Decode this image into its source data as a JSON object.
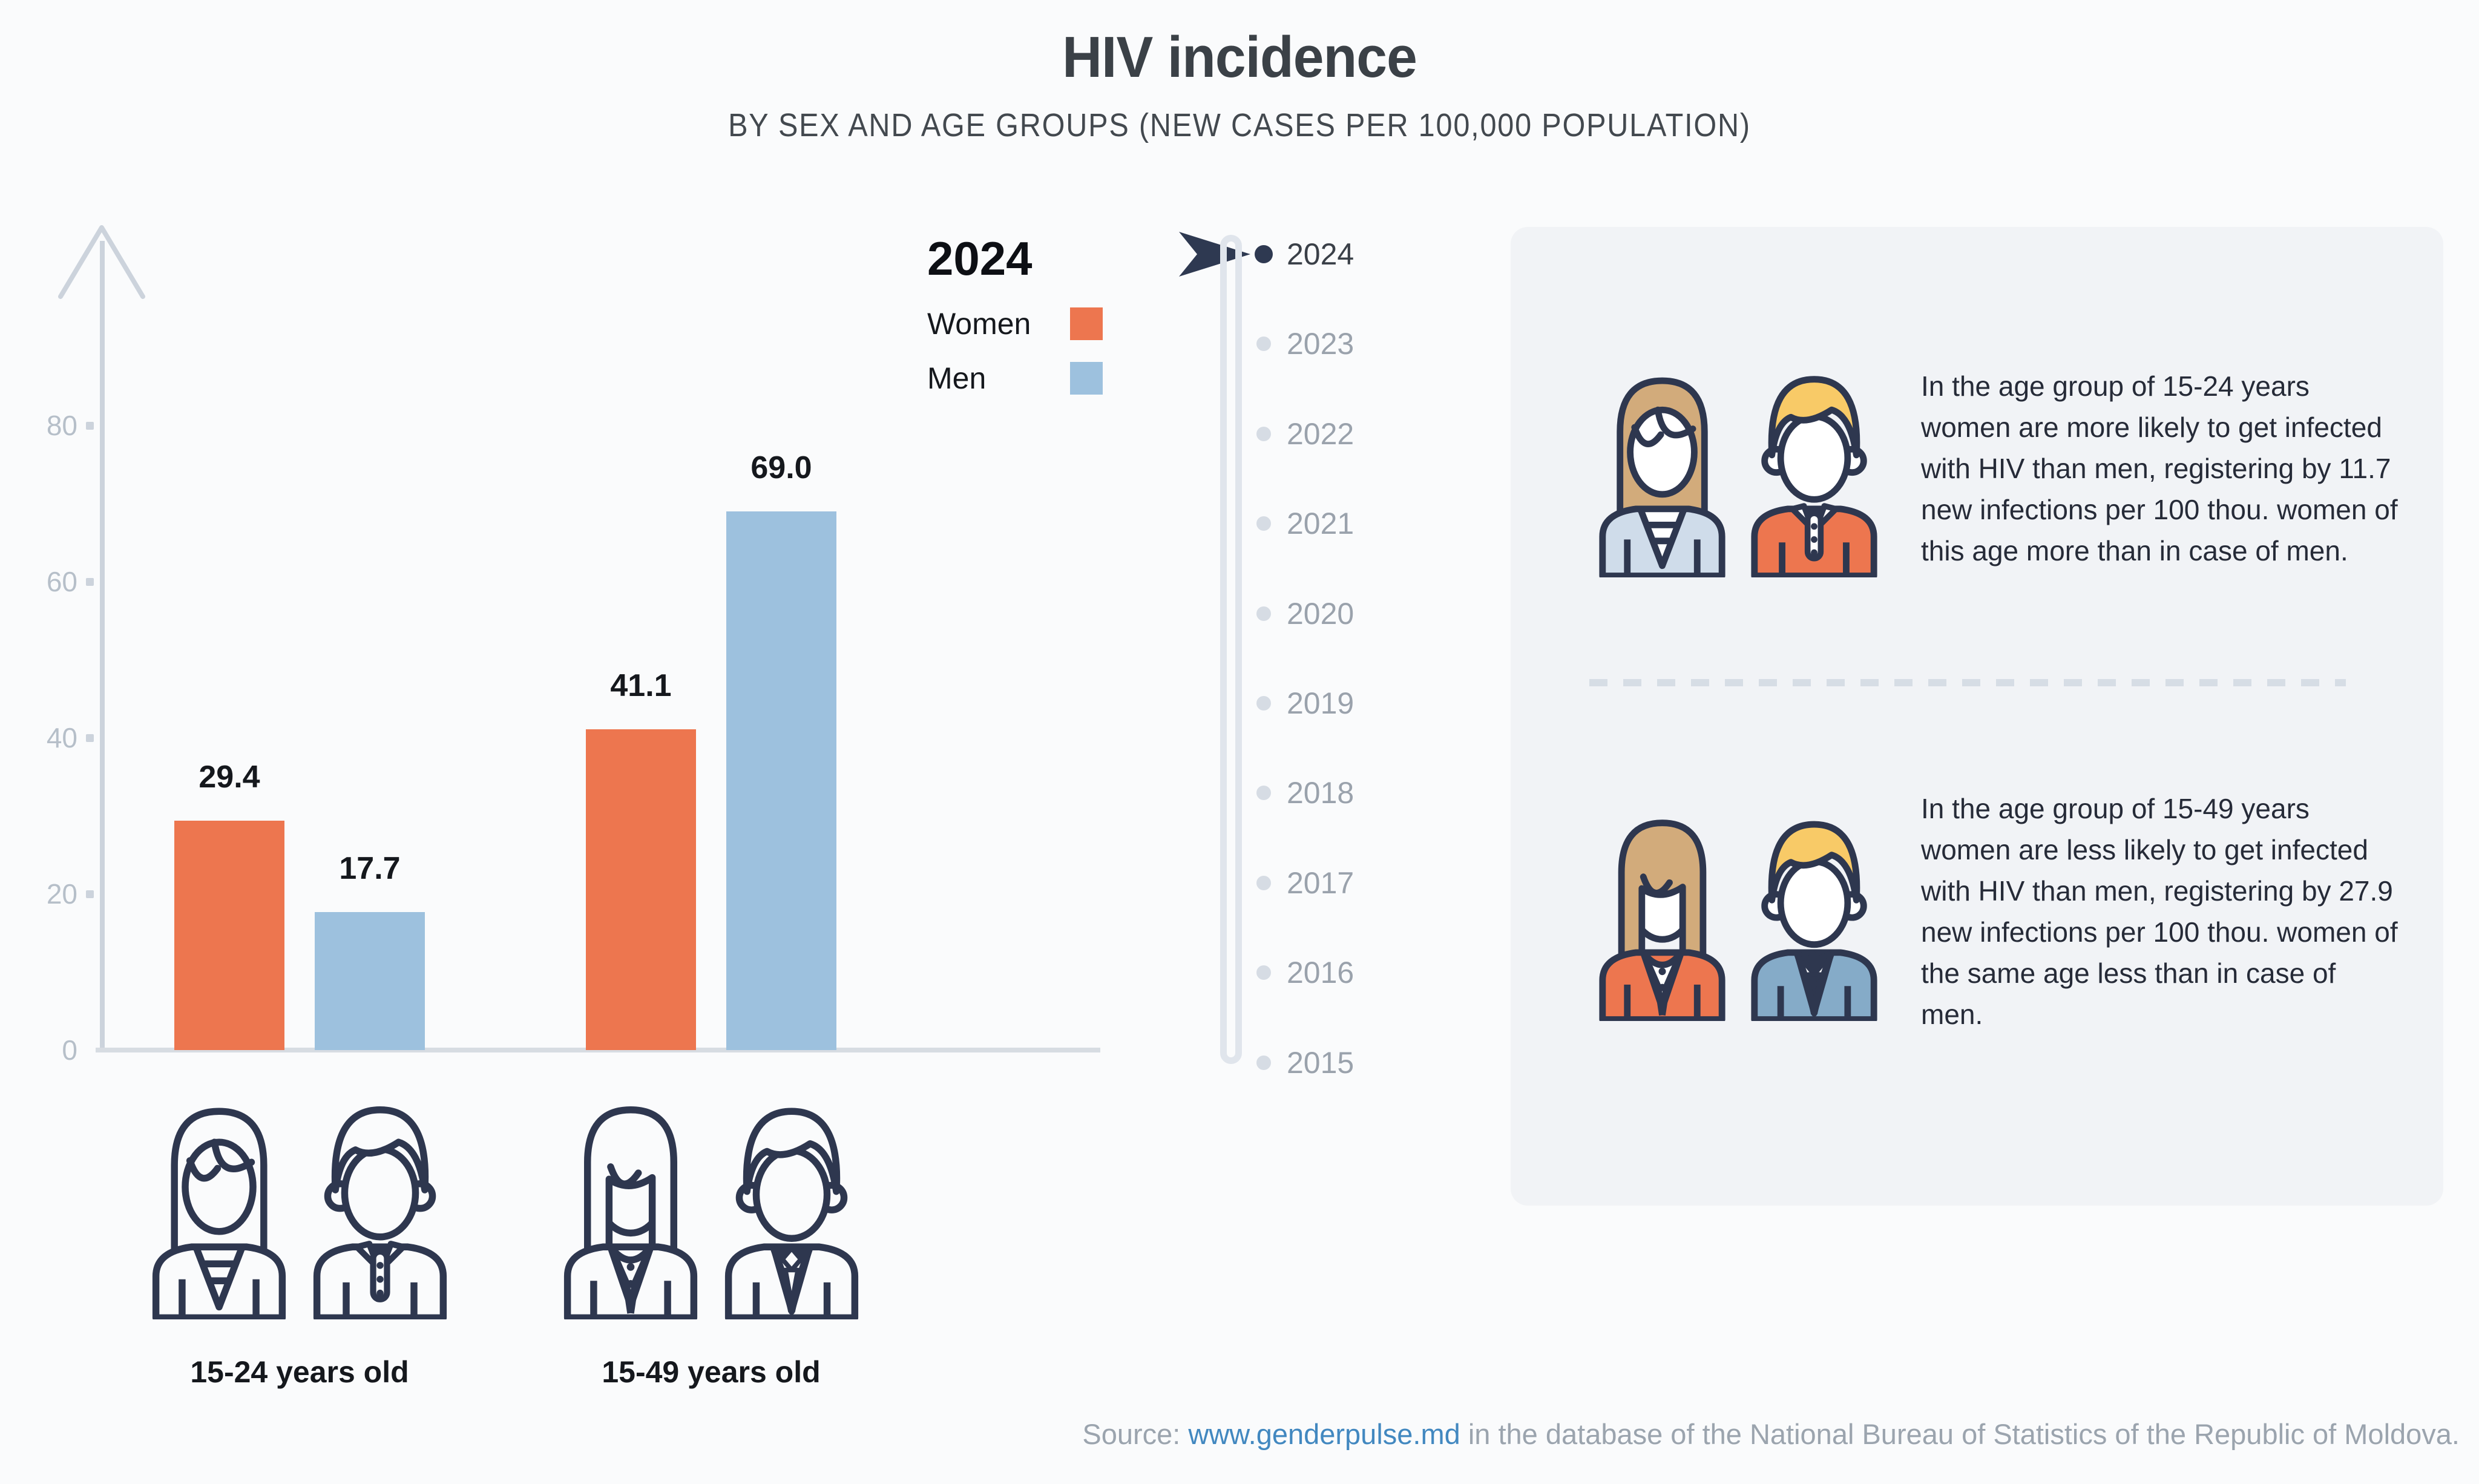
{
  "title": "HIV incidence",
  "subtitle": "BY SEX AND AGE GROUPS (NEW CASES PER 100,000 POPULATION)",
  "legend": {
    "year": "2024"
  },
  "chart_data": {
    "type": "bar",
    "title": "HIV incidence",
    "subtitle": "BY SEX AND AGE GROUPS (NEW CASES PER 100,000 POPULATION)",
    "year": "2024",
    "categories": [
      "15-24 years old",
      "15-49 years old"
    ],
    "series": [
      {
        "name": "Women",
        "color": "#ED764F",
        "values": [
          29.4,
          41.1
        ]
      },
      {
        "name": "Men",
        "color": "#9DC1DE",
        "values": [
          17.7,
          69.0
        ]
      }
    ],
    "ylabel": "new cases per 100,000 population",
    "ylim": [
      0,
      80
    ],
    "yticks": [
      0,
      20,
      40,
      60,
      80
    ],
    "grid": false,
    "legend_position": "top-right",
    "value_label_format": "one-decimal"
  },
  "timeline": {
    "selected": "2024",
    "years": [
      "2024",
      "2023",
      "2022",
      "2021",
      "2020",
      "2019",
      "2018",
      "2017",
      "2016",
      "2015"
    ]
  },
  "insights": [
    {
      "icons": [
        "young-woman-icon",
        "young-man-icon"
      ],
      "text": "In the age group of 15-24 years women are more likely to get infected with HIV than men, registering by 11.7 new infections per 100 thou. women of this age more than in case of men."
    },
    {
      "icons": [
        "adult-woman-icon",
        "adult-man-icon"
      ],
      "text": "In the age group of 15-49 years women are less likely to get infected with HIV than men, registering by 27.9 new infections per 100 thou. women of the same age less than in case of men."
    }
  ],
  "source": {
    "prefix": "Source: ",
    "link": "www.genderpulse.md",
    "suffix": " in the database of the National Bureau of Statistics of the Republic of Moldova."
  },
  "colors": {
    "page": "#fafbfc",
    "panel": "#f1f3f6",
    "women": "#ED764F",
    "men": "#9DC1DE",
    "line": "#2e374f",
    "hair-tan": "#d2ab7b",
    "hair-blonde": "#f8ca67",
    "blouse": "#cfdcea",
    "suit": "#85abc8",
    "axis": "#ccd3dc",
    "baseline": "#d7dce2",
    "tick-text": "#b6bfc9",
    "year-text": "#9aa2ac",
    "year-selected": "#3a4048",
    "dot": "#d6dce4",
    "dot-selected": "#2e3951",
    "title": "#3b4147",
    "subtitle": "#43494f",
    "value": "#15181d",
    "text": "#262b38",
    "source": "#9ba4ae",
    "link": "#4288c0",
    "dash": "#d6dde5"
  }
}
